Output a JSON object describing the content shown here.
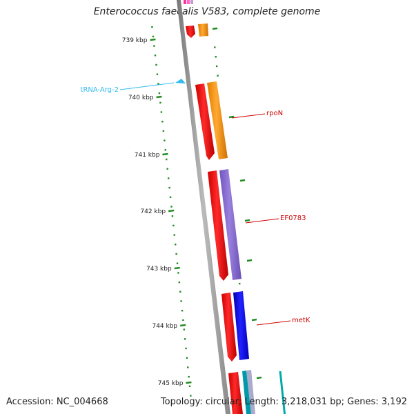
{
  "title": "Enterococcus faecalis V583, complete genome",
  "accession": "Accession: NC_004668",
  "summary": "Topology: circular; Length: 3,218,031 bp; Genes: 3,192",
  "ticks": [
    "739 kbp",
    "740 kbp",
    "741 kbp",
    "742 kbp",
    "743 kbp",
    "744 kbp",
    "745 kbp"
  ],
  "labels": {
    "trna": "tRNA-Arg-2",
    "rpoN": "rpoN",
    "ef0783": "EF0783",
    "metK": "metK"
  },
  "colors": {
    "cds": "#ff0000",
    "trna": "#33bbee",
    "label_red": "#cc0000",
    "tick": "#228b22",
    "backbone": "#999999",
    "orange": "#ff9900",
    "purple": "#8866cc",
    "blue": "#0000ee"
  }
}
